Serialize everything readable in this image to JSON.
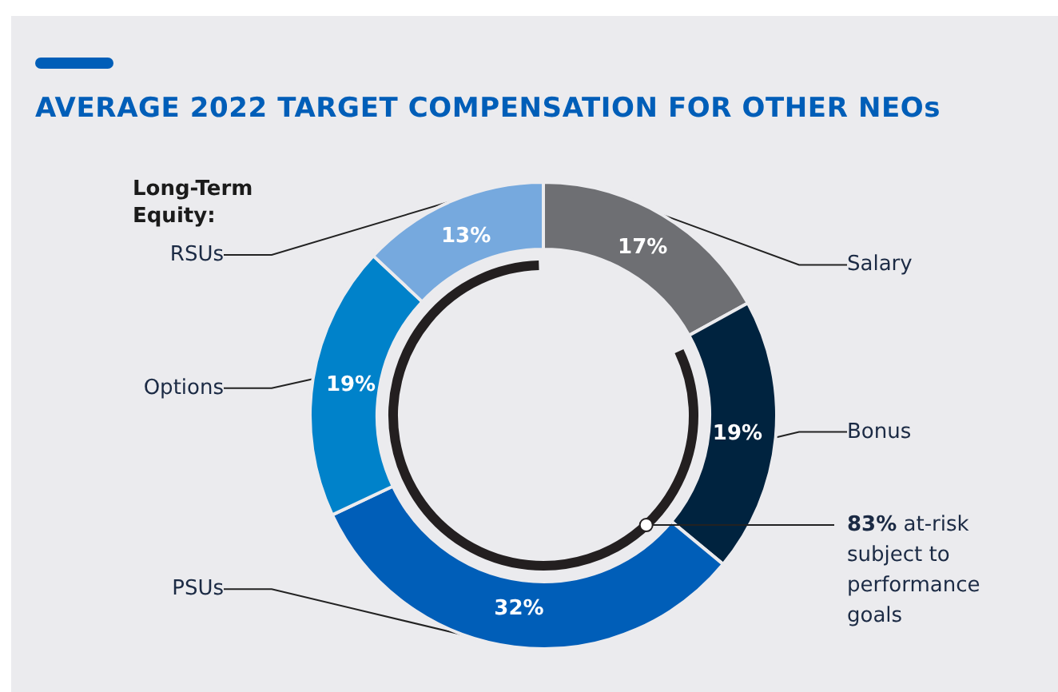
{
  "chart_data": {
    "type": "donut",
    "title": "AVERAGE 2022 TARGET COMPENSATION FOR OTHER NEOs",
    "categories": [
      "Salary",
      "Bonus",
      "PSUs",
      "Options",
      "RSUs"
    ],
    "values": [
      17,
      19,
      32,
      19,
      13
    ],
    "colors": [
      "#6e6f73",
      "#00233f",
      "#005eb8",
      "#0082ca",
      "#76a9de"
    ],
    "value_labels": [
      "17%",
      "19%",
      "32%",
      "19%",
      "13%"
    ],
    "annotations": [
      "Long-Term Equity:",
      "83% at-risk subject to performance goals"
    ],
    "legend": false
  }
}
